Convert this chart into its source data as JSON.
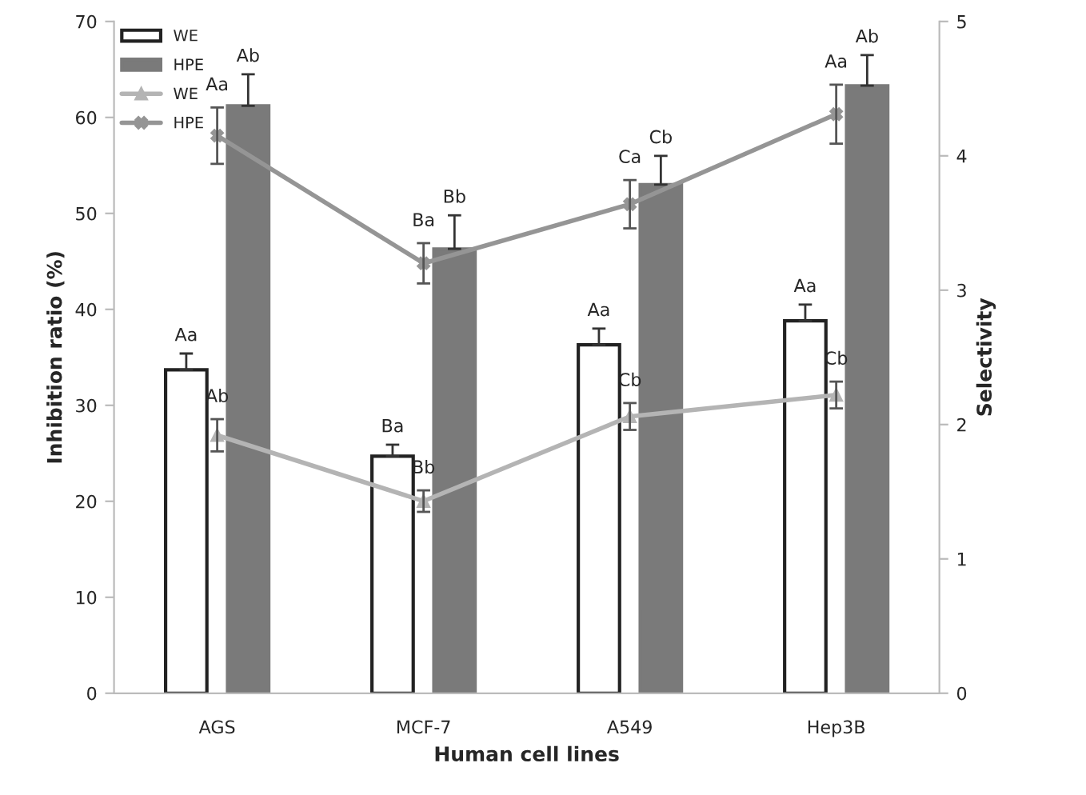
{
  "chart_data": {
    "type": "bar",
    "xlabel": "Human cell lines",
    "ylabel": "Inhibition ratio (%)",
    "y2label": "Selectivity",
    "categories": [
      "AGS",
      "MCF-7",
      "A549",
      "Hep3B"
    ],
    "series": [
      {
        "name": "WE",
        "color": "#ffffff",
        "values": [
          33.7,
          24.7,
          36.3,
          38.8
        ],
        "errors": [
          [
            33.7,
            35.4
          ],
          [
            24.7,
            25.9
          ],
          [
            36.3,
            38.0
          ],
          [
            38.8,
            40.5
          ]
        ],
        "value_labels": [
          "Aa",
          "Ba",
          "Aa",
          "Aa"
        ]
      },
      {
        "name": "HPE",
        "color": "#7a7a7a",
        "values": [
          61.2,
          46.3,
          53.0,
          63.3
        ],
        "errors": [
          [
            61.2,
            64.5
          ],
          [
            46.3,
            49.8
          ],
          [
            53.0,
            56.0
          ],
          [
            63.3,
            66.5
          ]
        ],
        "value_labels": [
          "Ab",
          "Bb",
          "Cb",
          "Ab"
        ]
      },
      {
        "name": "WE",
        "type": "line",
        "axis": "y2",
        "color": "#b4b4b4",
        "marker": "triangle",
        "values": [
          1.92,
          1.43,
          2.06,
          2.22
        ],
        "errors": [
          0.12,
          0.08,
          0.1,
          0.1
        ],
        "value_labels": [
          "Ab",
          "Bb",
          "Cb",
          "Cb"
        ]
      },
      {
        "name": "HPE",
        "type": "line",
        "axis": "y2",
        "color": "#959595",
        "marker": "cross",
        "values": [
          4.15,
          3.2,
          3.64,
          4.31
        ],
        "errors": [
          0.21,
          0.15,
          0.18,
          0.22
        ],
        "value_labels": [
          "Aa",
          "Ba",
          "Ca",
          "Aa"
        ]
      }
    ],
    "ylim": [
      0,
      70
    ],
    "yticks": [
      0,
      10,
      20,
      30,
      40,
      50,
      60,
      70
    ],
    "y2lim": [
      0,
      5
    ],
    "y2ticks": [
      0,
      1,
      2,
      3,
      4,
      5
    ],
    "legend": "top left",
    "grid": false
  }
}
